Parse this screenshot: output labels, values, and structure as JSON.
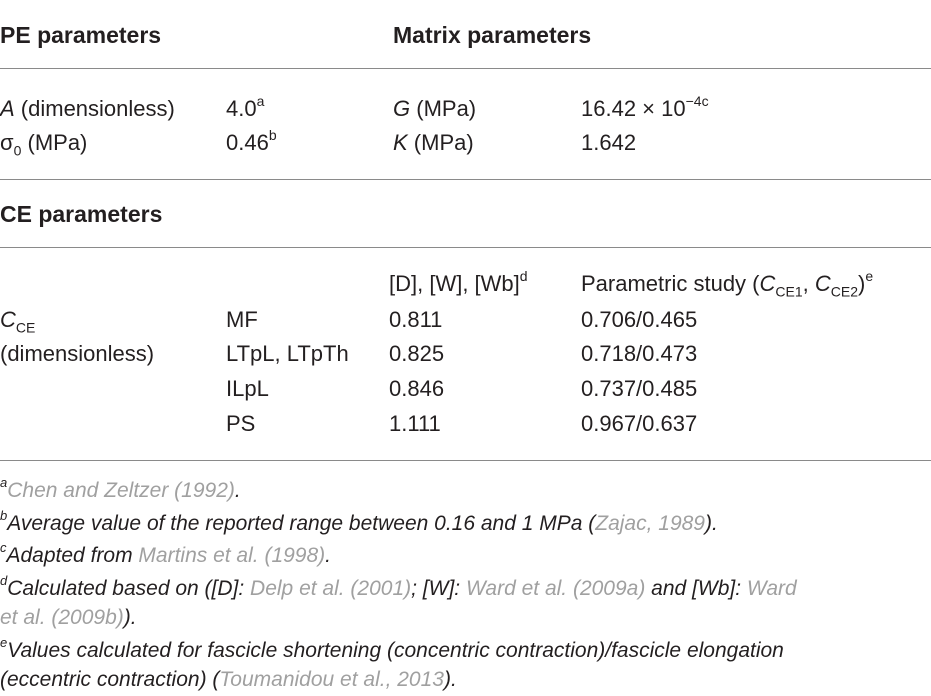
{
  "headers": {
    "pe": "PE parameters",
    "matrix": "Matrix parameters",
    "ce": "CE parameters"
  },
  "pe_rows": [
    {
      "sym": "A",
      "unit": " (dimensionless)",
      "value": "4.0",
      "note": "a"
    },
    {
      "sym": "σ",
      "sub": "0",
      "unit": " (MPa)",
      "value": "0.46",
      "note": "b"
    }
  ],
  "matrix_rows": [
    {
      "sym": "G",
      "unit": " (MPa)",
      "value": "16.42 × 10",
      "exp": "−4c"
    },
    {
      "sym": "K",
      "unit": " (MPa)",
      "value": "1.642"
    }
  ],
  "ce": {
    "col_d_header": "[D], [W], [Wb]",
    "col_d_note": "d",
    "col_p_header_pre": "Parametric study (",
    "col_p_c1": "C",
    "col_p_c1_sub": "CE1",
    "col_p_sep": ", ",
    "col_p_c2": "C",
    "col_p_c2_sub": "CE2",
    "col_p_header_post": ")",
    "col_p_note": "e",
    "param_sym": "C",
    "param_sub": "CE",
    "param_unit": "(dimensionless)",
    "rows": [
      {
        "muscle": "MF",
        "value": "0.811",
        "param": "0.706/0.465"
      },
      {
        "muscle": "LTpL, LTpTh",
        "value": "0.825",
        "param": "0.718/0.473"
      },
      {
        "muscle": "ILpL",
        "value": "0.846",
        "param": "0.737/0.485"
      },
      {
        "muscle": "PS",
        "value": "1.111",
        "param": "0.967/0.637"
      }
    ]
  },
  "footnotes": {
    "a": {
      "mark": "a",
      "cite": "Chen and Zeltzer (1992)",
      "post": "."
    },
    "b": {
      "mark": "b",
      "text": "Average value of the reported range between 0.16 and 1 MPa (",
      "cite": "Zajac, 1989",
      "post": ")."
    },
    "c": {
      "mark": "c",
      "text": "Adapted from ",
      "cite": "Martins et al. (1998)",
      "post": "."
    },
    "d": {
      "mark": "d",
      "t1": "Calculated based on ([D]: ",
      "c1": "Delp et al. (2001)",
      "t2": "; [W]: ",
      "c2": "Ward et al. (2009a)",
      "t3": " and [Wb]: ",
      "c3a": "Ward",
      "c3b": "et al. (2009b)",
      "t4": ")."
    },
    "e": {
      "mark": "e",
      "line1": "Values calculated for fascicle shortening (concentric contraction)/fascicle elongation",
      "line2_pre": "(eccentric contraction) (",
      "cite": "Toumanidou et al., 2013",
      "post": ")."
    }
  }
}
